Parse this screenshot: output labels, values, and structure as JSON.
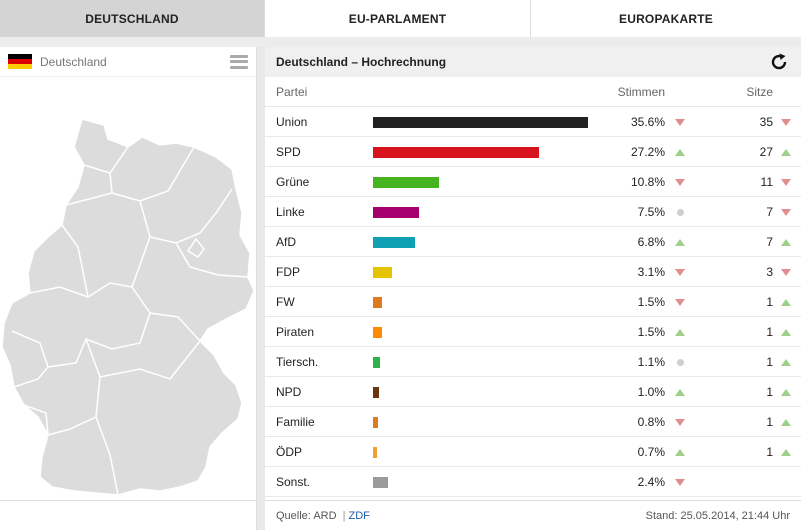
{
  "tabs": [
    {
      "label": "DEUTSCHLAND",
      "active": true
    },
    {
      "label": "EU-PARLAMENT",
      "active": false
    },
    {
      "label": "EUROPAKARTE",
      "active": false
    }
  ],
  "left": {
    "region": "Deutschland",
    "flag_colors": [
      "#000000",
      "#dd0000",
      "#ffce00"
    ]
  },
  "results": {
    "title": "Deutschland – Hochrechnung",
    "columns": {
      "party": "Partei",
      "votes": "Stimmen",
      "seats": "Sitze"
    },
    "rows": [
      {
        "party": "Union",
        "pct": "35.6%",
        "share": 35.6,
        "color": "#222222",
        "trend": "down",
        "seats": "35",
        "seat_trend": "down"
      },
      {
        "party": "SPD",
        "pct": "27.2%",
        "share": 27.2,
        "color": "#d7141e",
        "trend": "up",
        "seats": "27",
        "seat_trend": "up"
      },
      {
        "party": "Grüne",
        "pct": "10.8%",
        "share": 10.8,
        "color": "#46b321",
        "trend": "down",
        "seats": "11",
        "seat_trend": "down"
      },
      {
        "party": "Linke",
        "pct": "7.5%",
        "share": 7.5,
        "color": "#a5006e",
        "trend": "neutral",
        "seats": "7",
        "seat_trend": "down"
      },
      {
        "party": "AfD",
        "pct": "6.8%",
        "share": 6.8,
        "color": "#0fa0b4",
        "trend": "up",
        "seats": "7",
        "seat_trend": "up"
      },
      {
        "party": "FDP",
        "pct": "3.1%",
        "share": 3.1,
        "color": "#e6c300",
        "trend": "down",
        "seats": "3",
        "seat_trend": "down"
      },
      {
        "party": "FW",
        "pct": "1.5%",
        "share": 1.5,
        "color": "#e07a1e",
        "trend": "down",
        "seats": "1",
        "seat_trend": "up"
      },
      {
        "party": "Piraten",
        "pct": "1.5%",
        "share": 1.5,
        "color": "#ff8c00",
        "trend": "up",
        "seats": "1",
        "seat_trend": "up"
      },
      {
        "party": "Tiersch.",
        "pct": "1.1%",
        "share": 1.1,
        "color": "#2eb34a",
        "trend": "neutral",
        "seats": "1",
        "seat_trend": "up"
      },
      {
        "party": "NPD",
        "pct": "1.0%",
        "share": 1.0,
        "color": "#6b3410",
        "trend": "up",
        "seats": "1",
        "seat_trend": "up"
      },
      {
        "party": "Familie",
        "pct": "0.8%",
        "share": 0.8,
        "color": "#e07a1e",
        "trend": "down",
        "seats": "1",
        "seat_trend": "up"
      },
      {
        "party": "ÖDP",
        "pct": "0.7%",
        "share": 0.7,
        "color": "#f0a030",
        "trend": "up",
        "seats": "1",
        "seat_trend": "up"
      },
      {
        "party": "Sonst.",
        "pct": "2.4%",
        "share": 2.4,
        "color": "#9b9b9b",
        "trend": "down",
        "seats": "",
        "seat_trend": "none"
      }
    ],
    "source_label": "Quelle:",
    "source_ard": "ARD",
    "source_sep": "|",
    "source_zdf": "ZDF",
    "timestamp": "Stand: 25.05.2014, 21:44 Uhr"
  }
}
